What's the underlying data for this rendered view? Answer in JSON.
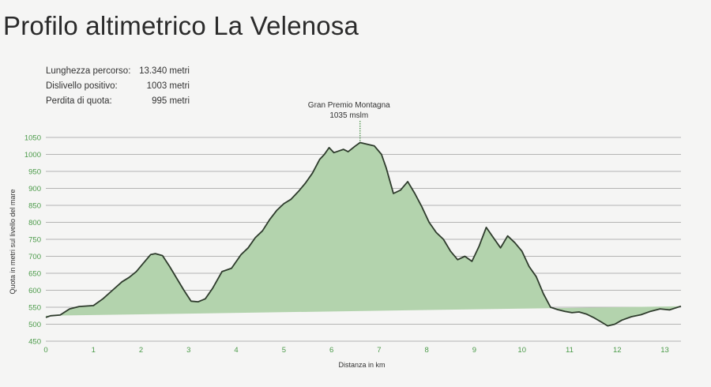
{
  "page": {
    "title": "Profilo altimetrico La Velenosa"
  },
  "stats": [
    {
      "label": "Lunghezza percorso:",
      "value": "13.340 metri"
    },
    {
      "label": "Dislivello positivo:",
      "value": "1003 metri"
    },
    {
      "label": "Perdita di quota:",
      "value": "995 metri"
    }
  ],
  "colors": {
    "fill": "#b3d3ad",
    "line": "#2e3b2c",
    "tick": "#4a9a48",
    "grid": "#9e9e9e",
    "background": "#f5f5f4"
  },
  "chart_data": {
    "type": "area",
    "title": "",
    "xlabel": "Distanza in km",
    "ylabel": "Quota in metri sul livello del mare",
    "xlim": [
      0,
      13.34
    ],
    "ylim": [
      450,
      1050
    ],
    "x_ticks": [
      "0",
      "1",
      "2",
      "3",
      "4",
      "5",
      "6",
      "7",
      "8",
      "9",
      "10",
      "11",
      "12",
      "13"
    ],
    "y_ticks": [
      "450",
      "500",
      "550",
      "600",
      "650",
      "700",
      "750",
      "800",
      "850",
      "900",
      "950",
      "1000",
      "1050"
    ],
    "grid": true,
    "baseline": {
      "from": [
        0,
        525
      ],
      "to": [
        13.34,
        553
      ]
    },
    "annotation": {
      "label": "Gran Premio Montagna",
      "value_label": "1035 mslm",
      "x": 6.6,
      "y": 1035
    },
    "series": [
      {
        "x": [
          0,
          0.1,
          0.3,
          0.5,
          0.7,
          1.0,
          1.2,
          1.4,
          1.6,
          1.75,
          1.9,
          2.05,
          2.2,
          2.3,
          2.45,
          2.6,
          2.75,
          2.9,
          3.05,
          3.2,
          3.35,
          3.5,
          3.7,
          3.9,
          4.1,
          4.25,
          4.4,
          4.55,
          4.7,
          4.85,
          5.0,
          5.15,
          5.3,
          5.45,
          5.6,
          5.75,
          5.85,
          5.95,
          6.05,
          6.15,
          6.25,
          6.35,
          6.5,
          6.6,
          6.75,
          6.9,
          7.05,
          7.15,
          7.3,
          7.45,
          7.6,
          7.75,
          7.9,
          8.05,
          8.2,
          8.35,
          8.5,
          8.65,
          8.8,
          8.95,
          9.1,
          9.25,
          9.4,
          9.55,
          9.7,
          9.85,
          10.0,
          10.15,
          10.3,
          10.45,
          10.6,
          10.75,
          10.9,
          11.05,
          11.2,
          11.35,
          11.5,
          11.65,
          11.8,
          11.95,
          12.1,
          12.3,
          12.5,
          12.7,
          12.9,
          13.1,
          13.34
        ],
        "y": [
          520,
          525,
          527,
          545,
          552,
          555,
          575,
          600,
          625,
          638,
          655,
          680,
          705,
          708,
          702,
          670,
          635,
          600,
          568,
          566,
          575,
          605,
          655,
          665,
          705,
          725,
          755,
          775,
          808,
          835,
          855,
          868,
          890,
          915,
          945,
          985,
          1000,
          1020,
          1005,
          1010,
          1015,
          1008,
          1025,
          1035,
          1030,
          1025,
          1000,
          960,
          885,
          895,
          920,
          885,
          845,
          800,
          770,
          750,
          715,
          690,
          700,
          685,
          730,
          785,
          755,
          725,
          760,
          740,
          715,
          670,
          640,
          590,
          550,
          543,
          538,
          534,
          536,
          530,
          520,
          508,
          495,
          500,
          512,
          522,
          528,
          538,
          545,
          542,
          553
        ]
      }
    ]
  }
}
